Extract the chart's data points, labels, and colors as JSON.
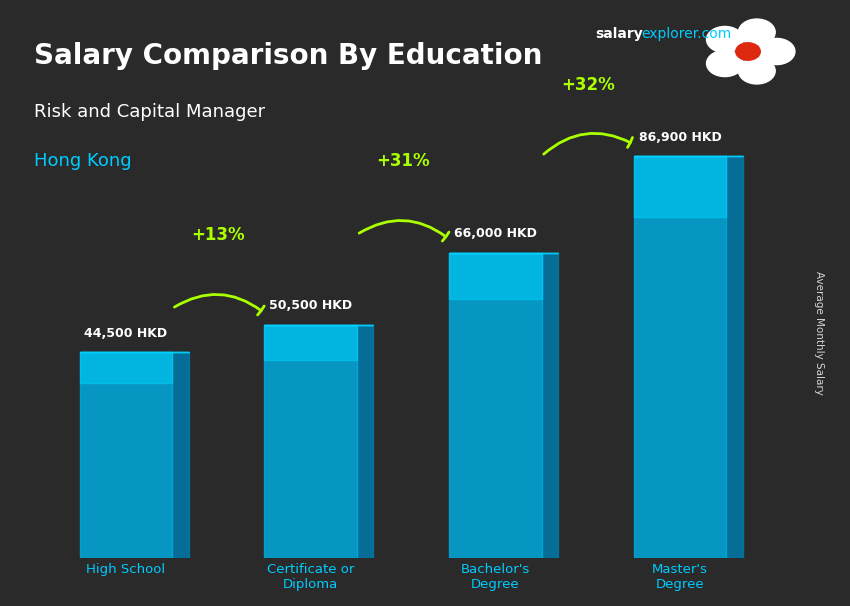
{
  "title_main": "Salary Comparison By Education",
  "title_sub": "Risk and Capital Manager",
  "title_location": "Hong Kong",
  "watermark": "salaryexplorer.com",
  "ylabel": "Average Monthly Salary",
  "categories": [
    "High School",
    "Certificate or\nDiploma",
    "Bachelor's\nDegree",
    "Master's\nDegree"
  ],
  "values": [
    44500,
    50500,
    66000,
    86900
  ],
  "value_labels": [
    "44,500 HKD",
    "50,500 HKD",
    "66,000 HKD",
    "86,900 HKD"
  ],
  "pct_labels": [
    "+13%",
    "+31%",
    "+32%"
  ],
  "bar_color_top": "#00d4ff",
  "bar_color_mid": "#00aadd",
  "bar_color_side": "#007aaa",
  "bar_color_bottom": "#005580",
  "background_color": "#1a1a2e",
  "title_color": "#ffffff",
  "subtitle_color": "#ffffff",
  "location_color": "#00ccff",
  "value_label_color": "#ffffff",
  "pct_color": "#aaff00",
  "arrow_color": "#aaff00",
  "xlabel_color": "#00ccff",
  "ylim": [
    0,
    100000
  ],
  "bar_width": 0.5
}
